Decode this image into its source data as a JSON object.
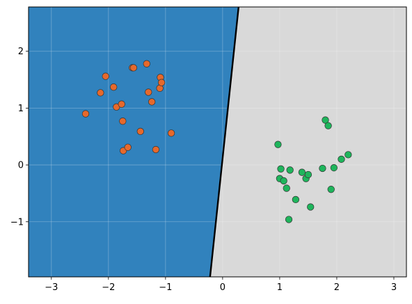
{
  "chart_data": {
    "type": "scatter",
    "title": "",
    "xlabel": "",
    "ylabel": "",
    "xlim": [
      -3.4,
      3.22
    ],
    "ylim": [
      -1.97,
      2.78
    ],
    "xticks": [
      -3,
      -2,
      -1,
      0,
      1,
      2,
      3
    ],
    "yticks": [
      -1,
      0,
      1,
      2
    ],
    "xtick_labels": [
      "−3",
      "−2",
      "−1",
      "0",
      "1",
      "2",
      "3"
    ],
    "ytick_labels": [
      "−1",
      "0",
      "1",
      "2"
    ],
    "grid": true,
    "legend": "none",
    "decision_boundary": {
      "points": [
        [
          -0.22,
          -1.97
        ],
        [
          0.28,
          2.78
        ]
      ],
      "color": "#000000"
    },
    "regions": [
      {
        "side": "left",
        "color": "#3182bd"
      },
      {
        "side": "right",
        "color": "#d9d9d9"
      }
    ],
    "series": [
      {
        "color": "#e6692c",
        "points": [
          [
            -2.4,
            0.9
          ],
          [
            -2.14,
            1.27
          ],
          [
            -2.05,
            1.56
          ],
          [
            -1.91,
            1.37
          ],
          [
            -1.86,
            1.02
          ],
          [
            -1.77,
            1.07
          ],
          [
            -1.75,
            0.77
          ],
          [
            -1.74,
            0.25
          ],
          [
            -1.66,
            0.31
          ],
          [
            -1.58,
            1.71
          ],
          [
            -1.56,
            1.71
          ],
          [
            -1.44,
            0.59
          ],
          [
            -1.33,
            1.78
          ],
          [
            -1.3,
            1.28
          ],
          [
            -1.24,
            1.11
          ],
          [
            -1.17,
            0.27
          ],
          [
            -1.1,
            1.35
          ],
          [
            -1.09,
            1.54
          ],
          [
            -1.07,
            1.45
          ],
          [
            -0.9,
            0.56
          ]
        ]
      },
      {
        "color": "#1fb55c",
        "points": [
          [
            0.97,
            0.36
          ],
          [
            1.0,
            -0.24
          ],
          [
            1.02,
            -0.07
          ],
          [
            1.07,
            -0.28
          ],
          [
            1.12,
            -0.41
          ],
          [
            1.16,
            -0.96
          ],
          [
            1.18,
            -0.09
          ],
          [
            1.28,
            -0.61
          ],
          [
            1.39,
            -0.13
          ],
          [
            1.46,
            -0.24
          ],
          [
            1.5,
            -0.17
          ],
          [
            1.54,
            -0.74
          ],
          [
            1.75,
            -0.06
          ],
          [
            1.8,
            0.79
          ],
          [
            1.85,
            0.69
          ],
          [
            1.9,
            -0.43
          ],
          [
            1.95,
            -0.05
          ],
          [
            2.08,
            0.1
          ],
          [
            2.2,
            0.18
          ]
        ]
      }
    ]
  }
}
